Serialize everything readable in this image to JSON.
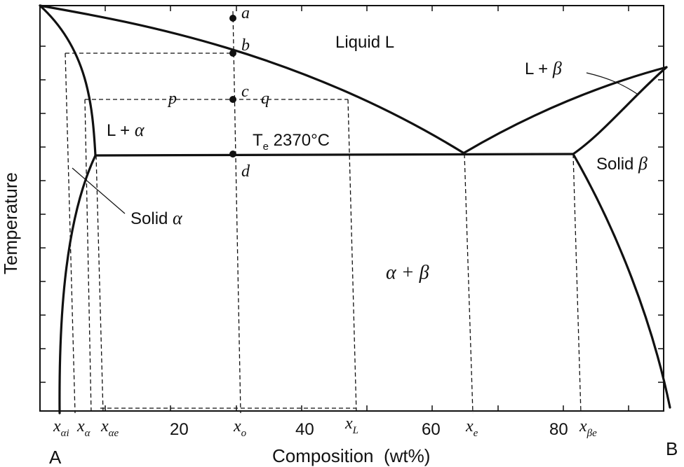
{
  "diagram": {
    "title": "",
    "axes": {
      "y_label": "Temperature",
      "x_label": "Composition  (wt%)",
      "x_ticks": [
        "20",
        "40",
        "60",
        "80"
      ],
      "end_left": "A",
      "end_right": "B"
    },
    "x_markers": {
      "x_ai_main": "x",
      "x_ai_sub": "αi",
      "x_a_main": "x",
      "x_a_sub": "α",
      "x_ae_main": "x",
      "x_ae_sub": "αe",
      "x_o_main": "x",
      "x_o_sub": "o",
      "x_L_main": "x",
      "x_L_sub": "L",
      "x_e_main": "x",
      "x_e_sub": "e",
      "x_be_main": "x",
      "x_be_sub": "βe"
    },
    "regions": {
      "liquid": "Liquid L",
      "l_alpha_prefix": "L + ",
      "l_alpha_sym": "α",
      "l_beta_prefix": "L + ",
      "l_beta_sym": "β",
      "solid_beta_prefix": "Solid ",
      "solid_beta_sym": "β",
      "solid_alpha_prefix": "Solid ",
      "solid_alpha_sym": "α",
      "alpha_beta": "α + β"
    },
    "points": {
      "a": "a",
      "b": "b",
      "c": "c",
      "d": "d",
      "p": "p",
      "q": "q"
    },
    "eutectic": {
      "t_main": "T",
      "t_sub": "e",
      "value": " 2370°C"
    },
    "colors": {
      "line": "#111111",
      "background": "#ffffff"
    }
  }
}
